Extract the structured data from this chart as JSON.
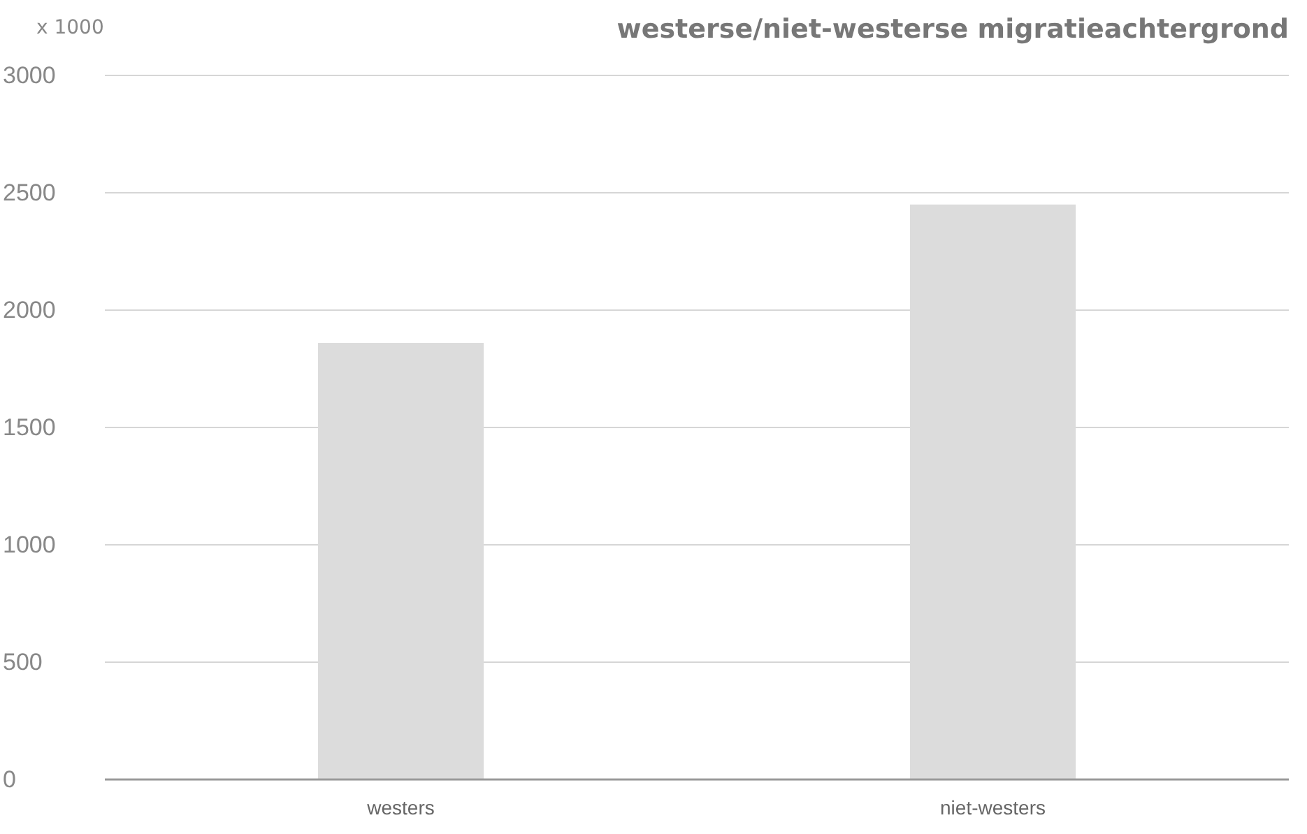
{
  "chart_data": {
    "type": "bar",
    "title": "westerse/niet-westerse migratieachtergrond",
    "ylabel": "x 1000",
    "categories": [
      "westers",
      "niet-westers"
    ],
    "values": [
      1860,
      2450
    ],
    "color": "#dcdcdc",
    "ylim": [
      0,
      3000
    ],
    "yticks": [
      0,
      500,
      1000,
      1500,
      2000,
      2500,
      3000
    ],
    "grid": "y"
  }
}
